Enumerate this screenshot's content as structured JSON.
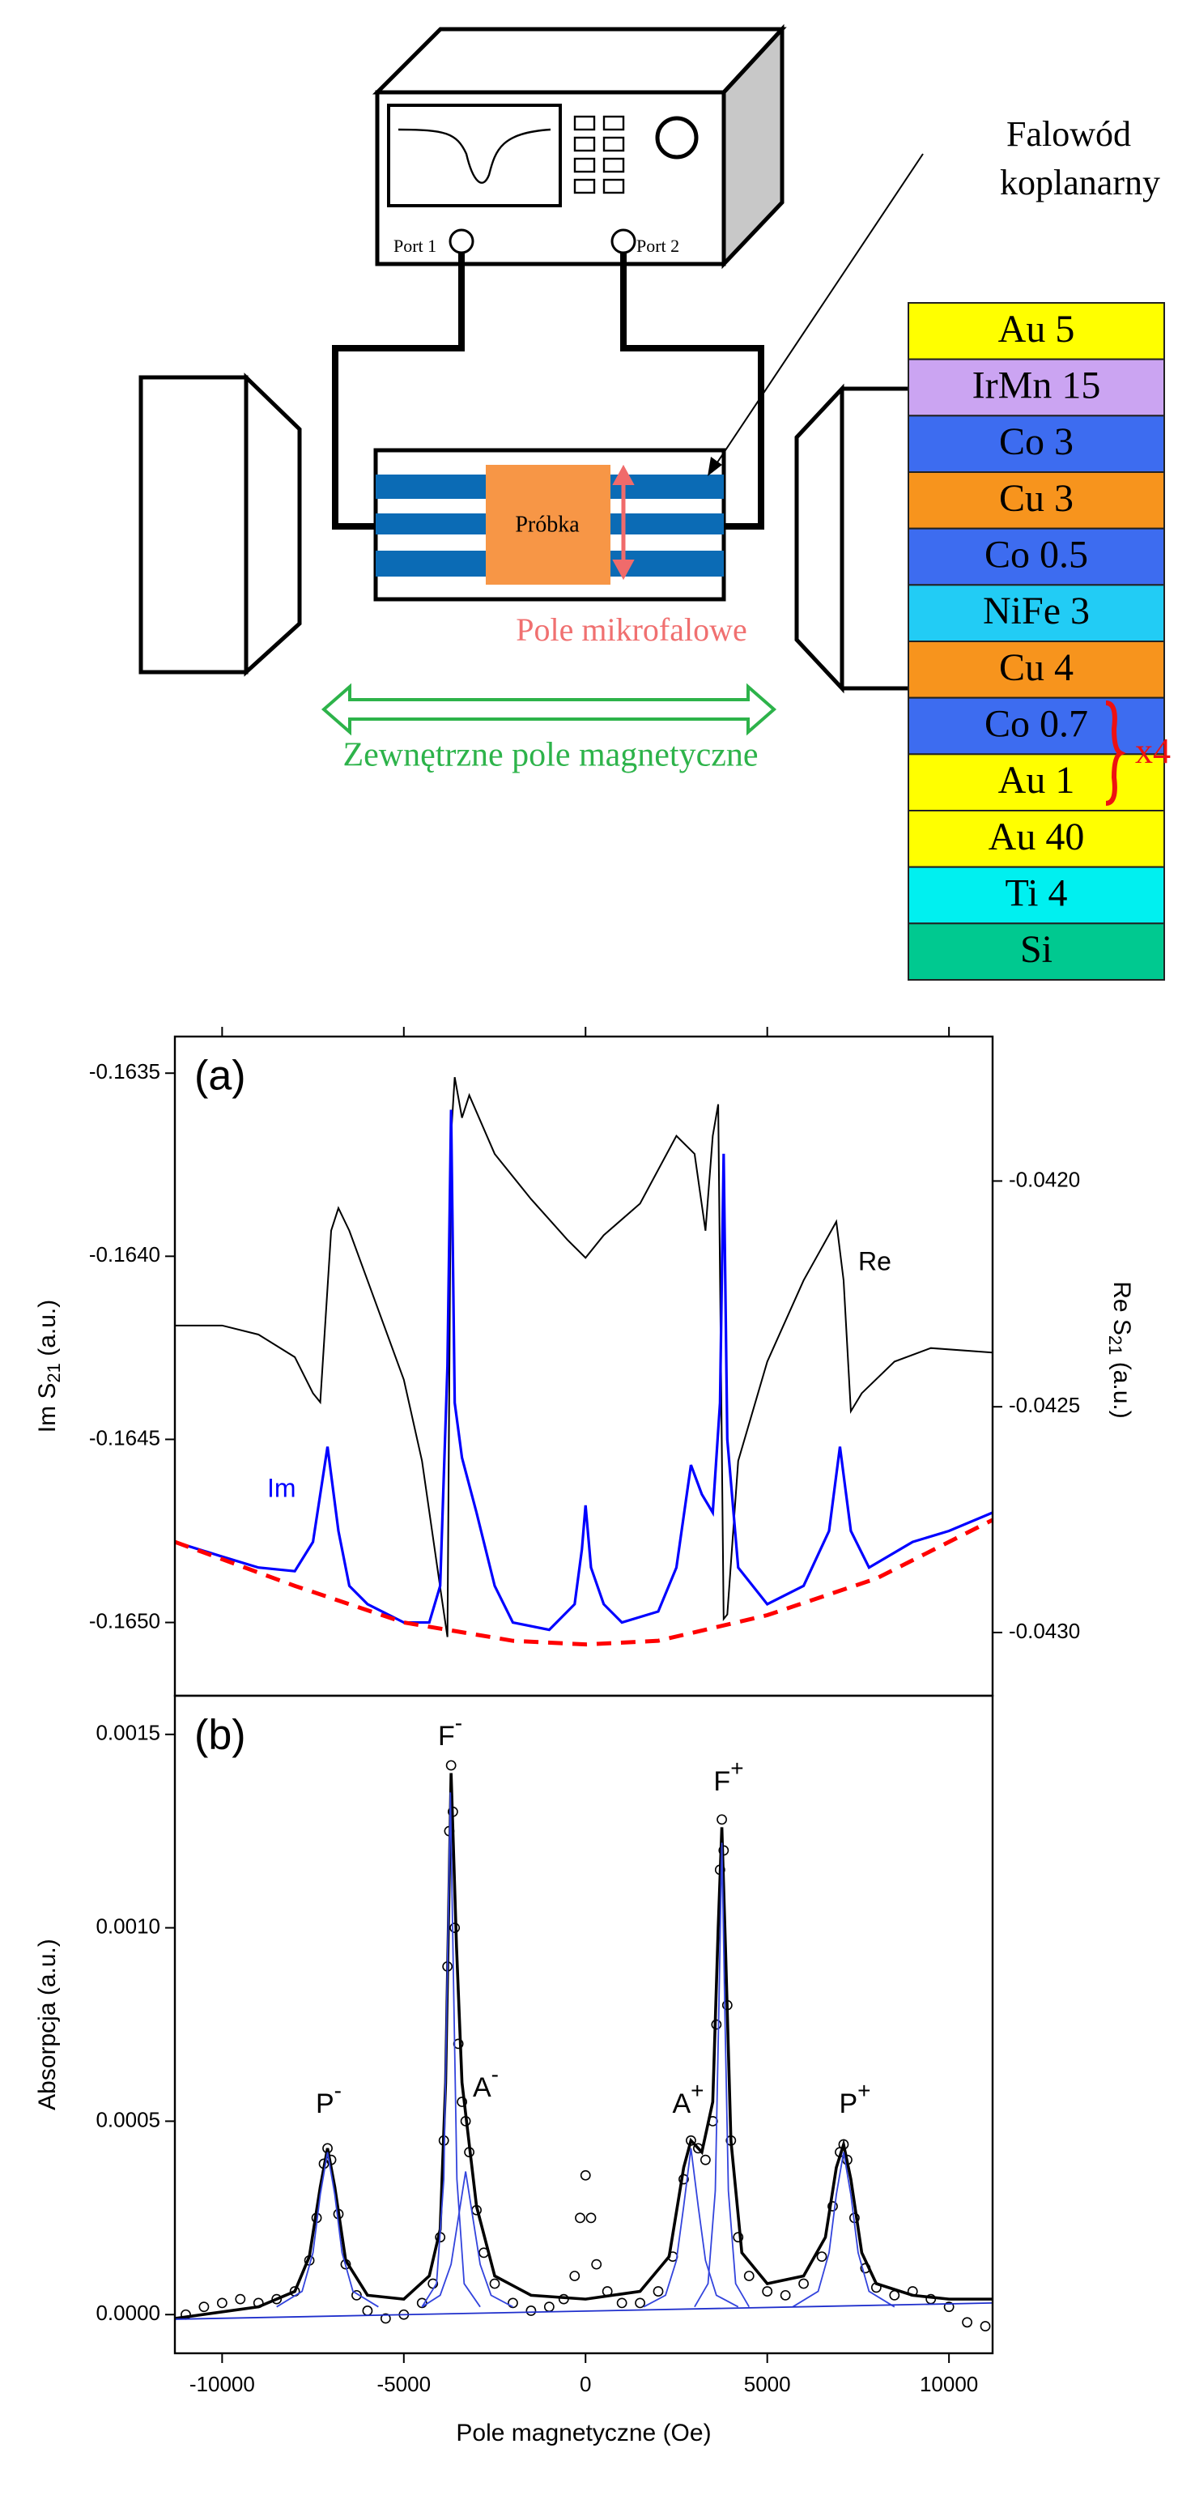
{
  "diagram": {
    "label_waveguide": [
      "Falowód",
      "koplanarny"
    ],
    "port1": "Port 1",
    "port2": "Port 2",
    "sample": "Próbka",
    "microwave_field": "Pole mikrofalowe",
    "external_field": "Zewnętrzne pole magnetyczne",
    "repeat": "x4",
    "layers": [
      {
        "name": "Au 5",
        "color": "#ffff00"
      },
      {
        "name": "IrMn 15",
        "color": "#cba4f2"
      },
      {
        "name": "Co 3",
        "color": "#3d6cf0"
      },
      {
        "name": "Cu 3",
        "color": "#f7941d"
      },
      {
        "name": "Co 0.5",
        "color": "#3d6cf0"
      },
      {
        "name": "NiFe 3",
        "color": "#22ccf5"
      },
      {
        "name": "Cu 4",
        "color": "#f7941d"
      },
      {
        "name": "Co 0.7",
        "color": "#3d6cf0"
      },
      {
        "name": "Au 1",
        "color": "#ffff00"
      },
      {
        "name": "Au 40",
        "color": "#ffff00"
      },
      {
        "name": "Ti 4",
        "color": "#00f0f0"
      },
      {
        "name": "Si",
        "color": "#00c990"
      }
    ]
  },
  "chart_data": [
    {
      "type": "line",
      "panel_label": "(a)",
      "ylabel": "Im S21 (a.u.)",
      "y2label": "Re S21 (a.u.)",
      "xlim": [
        -11300,
        11200
      ],
      "xticks": [
        -10000,
        -5000,
        0,
        5000,
        10000
      ],
      "ylim": [
        -0.1652,
        -0.1634
      ],
      "yticks": [
        -0.1635,
        {
          "value": -0.164,
          "label": "-0.1640"
        },
        -0.1645,
        {
          "value": -0.165,
          "label": "-0.1650"
        }
      ],
      "y2lim": [
        -0.04314,
        -0.04168
      ],
      "y2ticks": [
        {
          "value": -0.042,
          "label": "-0.0420"
        },
        -0.0425,
        {
          "value": -0.043,
          "label": "-0.0430"
        }
      ],
      "series": [
        {
          "name": "Re",
          "color": "#000000",
          "axis": "y2",
          "x": [
            -11300,
            -10000,
            -9000,
            -8000,
            -7500,
            -7300,
            -7000,
            -6800,
            -6500,
            -6000,
            -5000,
            -4500,
            -4000,
            -3800,
            -3700,
            -3600,
            -3400,
            -3200,
            -2500,
            -1500,
            -500,
            0,
            500,
            1500,
            2500,
            3000,
            3300,
            3500,
            3650,
            3800,
            3900,
            4200,
            5000,
            6000,
            6900,
            7100,
            7300,
            7600,
            8500,
            9500,
            11200
          ],
          "values": [
            -0.04232,
            -0.04232,
            -0.04234,
            -0.04239,
            -0.04247,
            -0.04249,
            -0.04211,
            -0.04206,
            -0.04211,
            -0.04222,
            -0.04244,
            -0.04262,
            -0.0429,
            -0.04301,
            -0.0419,
            -0.04177,
            -0.04186,
            -0.04181,
            -0.04194,
            -0.04204,
            -0.04213,
            -0.04217,
            -0.04212,
            -0.04205,
            -0.0419,
            -0.04194,
            -0.04211,
            -0.0419,
            -0.04183,
            -0.04297,
            -0.04296,
            -0.04262,
            -0.0424,
            -0.04222,
            -0.04209,
            -0.04222,
            -0.04251,
            -0.04247,
            -0.0424,
            -0.04237,
            -0.04238
          ]
        },
        {
          "name": "Im",
          "color": "#0000ff",
          "x": [
            -11300,
            -10000,
            -9000,
            -8000,
            -7500,
            -7100,
            -6800,
            -6500,
            -6000,
            -5000,
            -4300,
            -4000,
            -3800,
            -3700,
            -3600,
            -3400,
            -3000,
            -2500,
            -2000,
            -1000,
            -300,
            -100,
            0,
            150,
            500,
            1000,
            2000,
            2500,
            2900,
            3200,
            3500,
            3700,
            3800,
            3900,
            4200,
            5000,
            6000,
            6700,
            7000,
            7300,
            7800,
            9000,
            10000,
            11200
          ],
          "values": [
            -0.16478,
            -0.16482,
            -0.16485,
            -0.16486,
            -0.16478,
            -0.16452,
            -0.16475,
            -0.1649,
            -0.16495,
            -0.165,
            -0.165,
            -0.1649,
            -0.1643,
            -0.1636,
            -0.1644,
            -0.16455,
            -0.1647,
            -0.1649,
            -0.165,
            -0.16502,
            -0.16495,
            -0.1648,
            -0.16468,
            -0.16485,
            -0.16495,
            -0.165,
            -0.16497,
            -0.16485,
            -0.16457,
            -0.16465,
            -0.1647,
            -0.1644,
            -0.16372,
            -0.1645,
            -0.16485,
            -0.16495,
            -0.1649,
            -0.16475,
            -0.16452,
            -0.16475,
            -0.16485,
            -0.16478,
            -0.16475,
            -0.1647
          ]
        },
        {
          "color": "#ff0000",
          "dash": true,
          "x": [
            -11300,
            -8000,
            -5000,
            -2000,
            0,
            2000,
            5000,
            8000,
            11200
          ],
          "values": [
            -0.16478,
            -0.1649,
            -0.165,
            -0.16505,
            -0.16506,
            -0.16505,
            -0.16498,
            -0.16488,
            -0.16472
          ]
        }
      ]
    },
    {
      "type": "scatter",
      "panel_label": "(b)",
      "xlabel": "Pole magnetyczne (Oe)",
      "ylabel": "Absorpcja (a.u.)",
      "xlim": [
        -11300,
        11200
      ],
      "xticks": [
        -10000,
        -5000,
        0,
        5000,
        10000
      ],
      "ylim": [
        -0.0001,
        0.0016
      ],
      "yticks": [
        {
          "value": 0,
          "label": "0.0000"
        },
        0.0005,
        {
          "value": 0.001,
          "label": "0.0010"
        },
        0.0015
      ],
      "color": "#000000",
      "x": [
        -11000,
        -10500,
        -10000,
        -9500,
        -9000,
        -8500,
        -8000,
        -7600,
        -7400,
        -7200,
        -7100,
        -7000,
        -6800,
        -6600,
        -6300,
        -6000,
        -5500,
        -5000,
        -4500,
        -4200,
        -4000,
        -3900,
        -3800,
        -3750,
        -3700,
        -3650,
        -3600,
        -3500,
        -3400,
        -3300,
        -3200,
        -3000,
        -2800,
        -2500,
        -2000,
        -1500,
        -1000,
        -600,
        -300,
        -150,
        0,
        150,
        300,
        600,
        1000,
        1500,
        2000,
        2400,
        2700,
        2900,
        3100,
        3300,
        3500,
        3600,
        3700,
        3750,
        3800,
        3900,
        4000,
        4200,
        4500,
        5000,
        5500,
        6000,
        6500,
        6800,
        7000,
        7100,
        7200,
        7400,
        7700,
        8000,
        8500,
        9000,
        9500,
        10000,
        10500,
        11000
      ],
      "values": [
        0,
        2e-05,
        3e-05,
        4e-05,
        3e-05,
        4e-05,
        6e-05,
        0.00014,
        0.00025,
        0.00039,
        0.00043,
        0.0004,
        0.00026,
        0.00013,
        5e-05,
        1e-05,
        -1e-05,
        0,
        3e-05,
        8e-05,
        0.0002,
        0.00045,
        0.0009,
        0.00125,
        0.00142,
        0.0013,
        0.001,
        0.0007,
        0.00055,
        0.0005,
        0.00042,
        0.00027,
        0.00016,
        8e-05,
        3e-05,
        1e-05,
        2e-05,
        4e-05,
        0.0001,
        0.00025,
        0.00036,
        0.00025,
        0.00013,
        6e-05,
        3e-05,
        3e-05,
        6e-05,
        0.00015,
        0.00035,
        0.00045,
        0.00043,
        0.0004,
        0.0005,
        0.00075,
        0.00115,
        0.00128,
        0.0012,
        0.0008,
        0.00045,
        0.0002,
        0.0001,
        6e-05,
        5e-05,
        8e-05,
        0.00015,
        0.00028,
        0.00042,
        0.00044,
        0.0004,
        0.00025,
        0.00012,
        7e-05,
        5e-05,
        6e-05,
        4e-05,
        2e-05,
        -2e-05,
        -3e-05
      ],
      "lines": [
        {
          "color": "#000000",
          "x": [
            -11300,
            -9000,
            -8000,
            -7600,
            -7300,
            -7100,
            -6900,
            -6600,
            -6000,
            -5000,
            -4300,
            -4000,
            -3850,
            -3700,
            -3550,
            -3400,
            -3250,
            -3000,
            -2500,
            -1500,
            0,
            1500,
            2300,
            2700,
            2900,
            3200,
            3500,
            3650,
            3750,
            3850,
            4000,
            4300,
            5000,
            6000,
            6600,
            6900,
            7100,
            7300,
            7600,
            8000,
            9000,
            10000,
            11200
          ],
          "values": [
            -1e-05,
            2e-05,
            6e-05,
            0.00015,
            0.00033,
            0.00043,
            0.00033,
            0.00014,
            5e-05,
            4e-05,
            0.0001,
            0.00022,
            0.0006,
            0.0014,
            0.00095,
            0.0006,
            0.00048,
            0.00028,
            0.0001,
            5e-05,
            4e-05,
            6e-05,
            0.00015,
            0.00038,
            0.00045,
            0.00042,
            0.00055,
            0.001,
            0.00126,
            0.00095,
            0.00045,
            0.00016,
            8e-05,
            0.0001,
            0.0002,
            0.00038,
            0.00044,
            0.00035,
            0.00016,
            8e-05,
            5e-05,
            4e-05,
            4e-05
          ]
        },
        {
          "color": "#3344dd",
          "x": [
            -8500,
            -7800,
            -7500,
            -7300,
            -7100,
            -6900,
            -6700,
            -6400,
            -5700
          ],
          "values": [
            2e-05,
            6e-05,
            0.00016,
            0.00031,
            0.00042,
            0.00031,
            0.00016,
            6e-05,
            2e-05
          ]
        },
        {
          "color": "#3344dd",
          "x": [
            -4500,
            -4100,
            -3900,
            -3800,
            -3720,
            -3640,
            -3540,
            -3340,
            -2900
          ],
          "values": [
            2e-05,
            8e-05,
            0.00035,
            0.0009,
            0.00135,
            0.0009,
            0.00035,
            8e-05,
            2e-05
          ]
        },
        {
          "color": "#3344dd",
          "x": [
            -4500,
            -4000,
            -3700,
            -3500,
            -3300,
            -3100,
            -2900,
            -2600,
            -2000
          ],
          "values": [
            2e-05,
            5e-05,
            0.00013,
            0.00025,
            0.00037,
            0.00025,
            0.00013,
            5e-05,
            2e-05
          ]
        },
        {
          "color": "#3344dd",
          "x": [
            1600,
            2200,
            2500,
            2700,
            2900,
            3100,
            3300,
            3600,
            4200
          ],
          "values": [
            2e-05,
            5e-05,
            0.00014,
            0.00028,
            0.00043,
            0.00028,
            0.00014,
            5e-05,
            2e-05
          ]
        },
        {
          "color": "#3344dd",
          "x": [
            3000,
            3370,
            3570,
            3670,
            3750,
            3830,
            3930,
            4130,
            4500
          ],
          "values": [
            2e-05,
            8e-05,
            0.00032,
            0.0008,
            0.00122,
            0.0008,
            0.00032,
            8e-05,
            2e-05
          ]
        },
        {
          "color": "#3344dd",
          "x": [
            5700,
            6400,
            6700,
            6900,
            7100,
            7300,
            7500,
            7800,
            8500
          ],
          "values": [
            2e-05,
            6e-05,
            0.00016,
            0.00031,
            0.00042,
            0.00031,
            0.00016,
            6e-05,
            2e-05
          ]
        },
        {
          "color": "#1f2fcc",
          "x": [
            -11300,
            11200
          ],
          "values": [
            -1.2e-05,
            3e-05
          ]
        }
      ],
      "annotations": [
        "P-",
        "F-",
        "A-",
        "A+",
        "F+",
        "P+"
      ]
    }
  ]
}
